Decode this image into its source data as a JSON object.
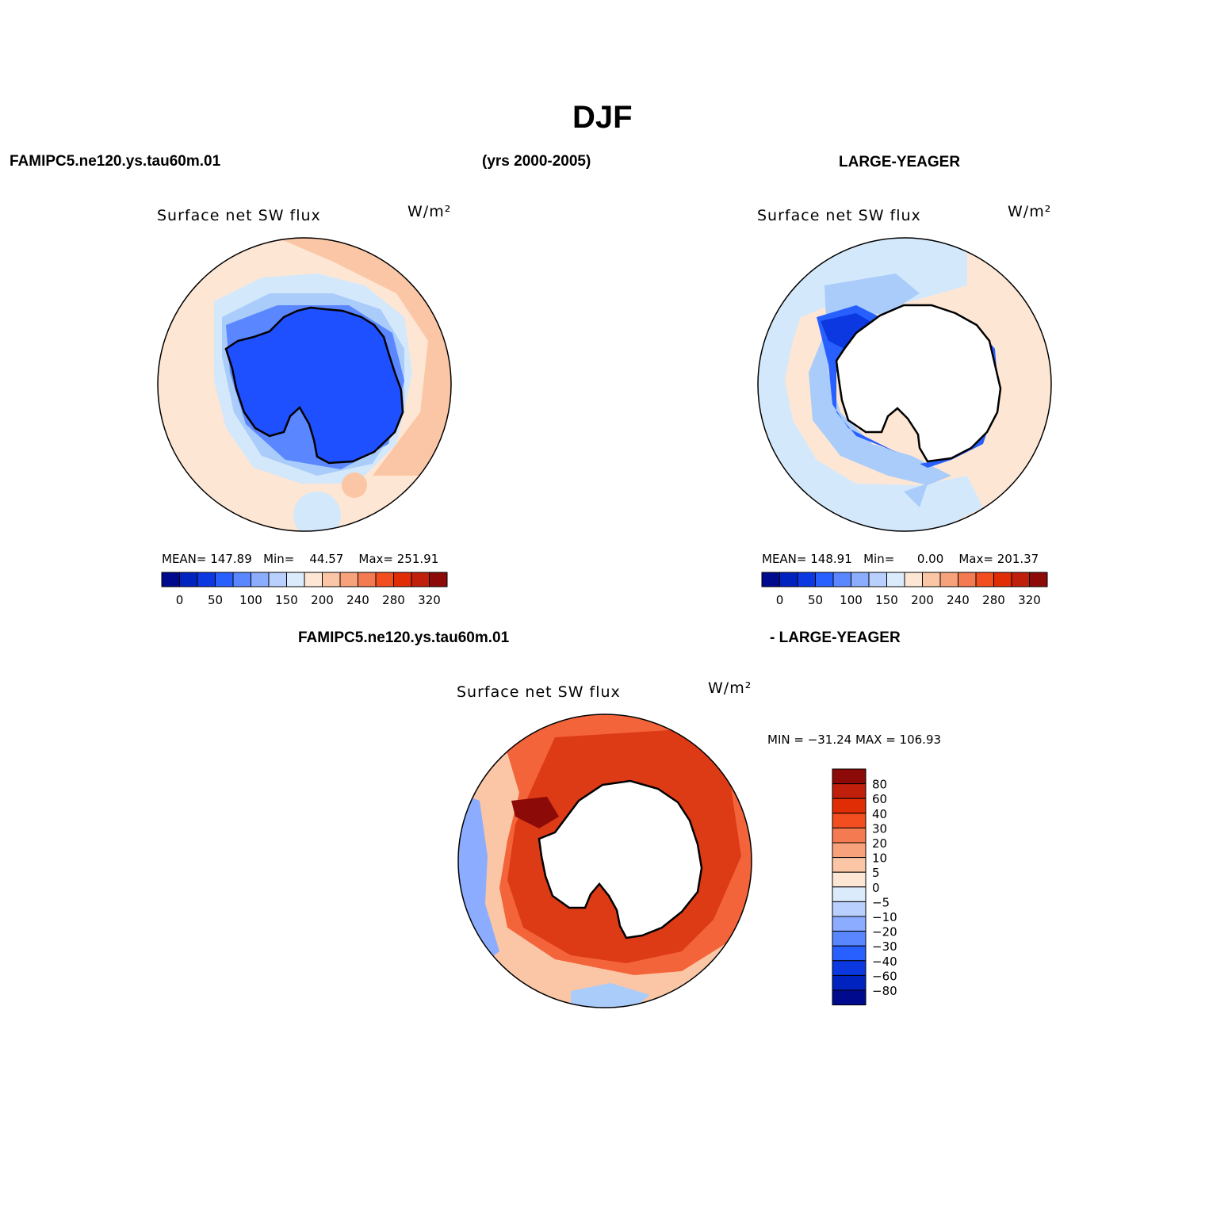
{
  "title": "DJF",
  "header": {
    "left_case": "FAMIPC5.ne120.ys.tau60m.01",
    "years": "(yrs 2000-2005)",
    "right_case": "LARGE-YEAGER"
  },
  "diff_header": {
    "left": "FAMIPC5.ne120.ys.tau60m.01",
    "right": "- LARGE-YEAGER"
  },
  "colors": {
    "land_model": "#1f50ff",
    "ocean_warm": "#fde6d4",
    "ocean_warm2": "#fbc6a6",
    "ocean_cool": "#d4e8fb",
    "ocean_cool2": "#a9ccfa",
    "diff_base": "#f4643a",
    "diff_dark": "#dd3a16",
    "coast": "#000000"
  },
  "chart_data": [
    {
      "type": "heatmap",
      "projection": "south-polar-stereographic",
      "title": "Surface net SW flux",
      "units": "W/m²",
      "stats": {
        "mean_label": "MEAN=",
        "mean": "147.89",
        "min_label": "Min=",
        "min": "44.57",
        "max_label": "Max=",
        "max": "251.91"
      },
      "colorbar": {
        "labels": [
          "0",
          "50",
          "100",
          "150",
          "200",
          "240",
          "280",
          "320"
        ],
        "colors": [
          "#000a8c",
          "#0022bf",
          "#0b38e0",
          "#2860ff",
          "#5a87ff",
          "#8cadff",
          "#b9d0ff",
          "#dcebfc",
          "#fde6d4",
          "#fbc6a6",
          "#f7a27b",
          "#f47a52",
          "#f24e1f",
          "#e12d06",
          "#c0200b",
          "#8c0a07"
        ]
      }
    },
    {
      "type": "heatmap",
      "projection": "south-polar-stereographic",
      "title": "Surface net SW flux",
      "units": "W/m²",
      "stats": {
        "mean_label": "MEAN=",
        "mean": "148.91",
        "min_label": "Min=",
        "min": "0.00",
        "max_label": "Max=",
        "max": "201.37"
      },
      "colorbar": {
        "labels": [
          "0",
          "50",
          "100",
          "150",
          "200",
          "240",
          "280",
          "320"
        ],
        "colors": [
          "#000a8c",
          "#0022bf",
          "#0b38e0",
          "#2860ff",
          "#5a87ff",
          "#8cadff",
          "#b9d0ff",
          "#dcebfc",
          "#fde6d4",
          "#fbc6a6",
          "#f7a27b",
          "#f47a52",
          "#f24e1f",
          "#e12d06",
          "#c0200b",
          "#8c0a07"
        ]
      }
    },
    {
      "type": "heatmap",
      "projection": "south-polar-stereographic",
      "title": "Surface net SW flux",
      "units": "W/m²",
      "range_text": "MIN = −31.24  MAX = 106.93",
      "colorbar": {
        "orientation": "vertical",
        "labels": [
          "80",
          "60",
          "40",
          "30",
          "20",
          "10",
          "5",
          "0",
          "−5",
          "−10",
          "−20",
          "−30",
          "−40",
          "−60",
          "−80"
        ],
        "colors": [
          "#8c0a07",
          "#c0200b",
          "#e12d06",
          "#f24e1f",
          "#f47a52",
          "#f7a27b",
          "#fbc6a6",
          "#fde6d4",
          "#dcebfc",
          "#b9d0ff",
          "#8cadff",
          "#5a87ff",
          "#2860ff",
          "#0b38e0",
          "#0022bf",
          "#000a8c"
        ]
      }
    }
  ]
}
